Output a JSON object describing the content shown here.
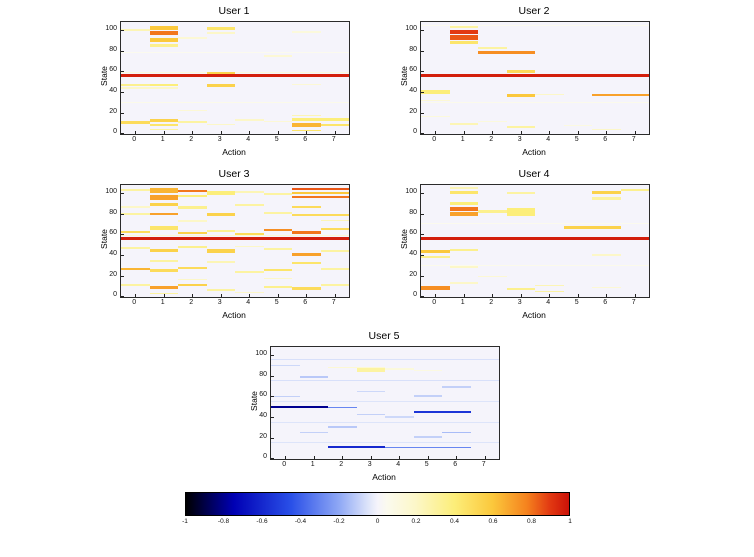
{
  "page": {
    "background": "#ffffff"
  },
  "axes": {
    "xlabel": "Action",
    "ylabel": "State",
    "xticks": [
      0,
      1,
      2,
      3,
      4,
      5,
      6,
      7
    ],
    "yticks": [
      0,
      20,
      40,
      60,
      80,
      100
    ]
  },
  "chart_data": {
    "type": "heatmap",
    "layout": "five heatmap subplots (2x2 grid plus one centered below) sharing one horizontal colorbar",
    "x_axis": {
      "label": "Action",
      "range": [
        -0.5,
        7.5
      ],
      "ticks": [
        0,
        1,
        2,
        3,
        4,
        5,
        6,
        7
      ]
    },
    "y_axis": {
      "label": "State",
      "range": [
        -0.5,
        107.5
      ],
      "ticks": [
        0,
        20,
        40,
        60,
        80,
        100
      ]
    },
    "value_range": [
      -1,
      1
    ],
    "background_value": 0,
    "cells_format": "[action_col, state_bottom, width_in_actions, height_in_states, value]",
    "colormap_stops": [
      {
        "v": -1,
        "color": "#000000"
      },
      {
        "v": -0.75,
        "color": "#0000b4"
      },
      {
        "v": -0.45,
        "color": "#2a50e8"
      },
      {
        "v": -0.2,
        "color": "#8fa8f5"
      },
      {
        "v": -0.05,
        "color": "#dde4fa"
      },
      {
        "v": 0,
        "color": "#f5f4fb"
      },
      {
        "v": 0.05,
        "color": "#fbfaee"
      },
      {
        "v": 0.2,
        "color": "#fcf7c8"
      },
      {
        "v": 0.4,
        "color": "#fcee7a"
      },
      {
        "v": 0.6,
        "color": "#fbc83c"
      },
      {
        "v": 0.78,
        "color": "#f5821e"
      },
      {
        "v": 0.9,
        "color": "#e23912"
      },
      {
        "v": 1,
        "color": "#cc1208"
      }
    ],
    "colorbar": {
      "orientation": "horizontal",
      "range": [
        -1,
        1
      ],
      "ticks": [
        -1,
        -0.8,
        -0.6,
        -0.4,
        -0.2,
        0,
        0.2,
        0.4,
        0.6,
        0.8,
        1
      ]
    },
    "subplots": [
      {
        "title": "User 1",
        "cells": [
          [
            0,
            78,
            8,
            1,
            0.05
          ],
          [
            0,
            30,
            8,
            1,
            0.07
          ],
          [
            0,
            59,
            8,
            1,
            0.12
          ],
          [
            0,
            55,
            8,
            3,
            0.97
          ],
          [
            1,
            100,
            1,
            4,
            0.6
          ],
          [
            1,
            95,
            1,
            4,
            0.8
          ],
          [
            1,
            89,
            1,
            4,
            0.6
          ],
          [
            1,
            84,
            1,
            3,
            0.35
          ],
          [
            0,
            99,
            1,
            2,
            0.25
          ],
          [
            3,
            100,
            1,
            3,
            0.45
          ],
          [
            3,
            96,
            1,
            2,
            0.2
          ],
          [
            2,
            92,
            1,
            2,
            0.15
          ],
          [
            6,
            97,
            1,
            2,
            0.12
          ],
          [
            3,
            58,
            1,
            2,
            0.55
          ],
          [
            5,
            74,
            1,
            2,
            0.15
          ],
          [
            0,
            46,
            1,
            2,
            0.35
          ],
          [
            1,
            46,
            1,
            2,
            0.4
          ],
          [
            0,
            43,
            2,
            2,
            0.2
          ],
          [
            3,
            45,
            1,
            3,
            0.55
          ],
          [
            6,
            47,
            1,
            1,
            0.15
          ],
          [
            2,
            22,
            1,
            1,
            0.15
          ],
          [
            6,
            17,
            1,
            1,
            0.25
          ],
          [
            0,
            10,
            1,
            3,
            0.5
          ],
          [
            1,
            12,
            1,
            2,
            0.55
          ],
          [
            1,
            8,
            1,
            2,
            0.45
          ],
          [
            2,
            11,
            1,
            2,
            0.3
          ],
          [
            3,
            9,
            1,
            1,
            0.2
          ],
          [
            5,
            12,
            1,
            1,
            0.15
          ],
          [
            6,
            7,
            1,
            4,
            0.65
          ],
          [
            6,
            13,
            2,
            2,
            0.4
          ],
          [
            7,
            8,
            1,
            2,
            0.45
          ],
          [
            1,
            4,
            1,
            1,
            0.3
          ],
          [
            6,
            3,
            1,
            1,
            0.45
          ],
          [
            4,
            13,
            1,
            1,
            0.2
          ]
        ]
      },
      {
        "title": "User 2",
        "cells": [
          [
            0,
            104,
            8,
            1,
            0.05
          ],
          [
            0,
            30,
            8,
            1,
            0.06
          ],
          [
            0,
            55,
            8,
            3,
            0.97
          ],
          [
            1,
            102,
            1,
            2,
            0.3
          ],
          [
            1,
            96,
            1,
            4,
            0.9
          ],
          [
            1,
            91,
            1,
            4,
            0.85
          ],
          [
            1,
            87,
            1,
            3,
            0.45
          ],
          [
            2,
            82,
            1,
            2,
            0.3
          ],
          [
            2,
            77,
            2,
            3,
            0.75
          ],
          [
            3,
            59,
            1,
            3,
            0.5
          ],
          [
            0,
            39,
            1,
            3,
            0.4
          ],
          [
            3,
            36,
            1,
            3,
            0.6
          ],
          [
            6,
            37,
            2,
            2,
            0.7
          ],
          [
            4,
            38,
            1,
            1,
            0.2
          ],
          [
            0,
            32,
            1,
            1,
            0.15
          ],
          [
            1,
            9,
            1,
            2,
            0.25
          ],
          [
            3,
            6,
            1,
            2,
            0.3
          ],
          [
            6,
            4,
            1,
            1,
            0.2
          ],
          [
            0,
            16,
            1,
            1,
            0.12
          ],
          [
            2,
            12,
            1,
            1,
            0.12
          ],
          [
            5,
            8,
            1,
            1,
            0.1
          ]
        ]
      },
      {
        "title": "User 3",
        "cells": [
          [
            0,
            59,
            8,
            1,
            0.15
          ],
          [
            0,
            55,
            8,
            3,
            0.97
          ],
          [
            1,
            100,
            1,
            5,
            0.65
          ],
          [
            1,
            94,
            1,
            4,
            0.7
          ],
          [
            2,
            101,
            1,
            2,
            0.8
          ],
          [
            2,
            96,
            1,
            2,
            0.4
          ],
          [
            3,
            98,
            1,
            4,
            0.4
          ],
          [
            4,
            100,
            1,
            2,
            0.25
          ],
          [
            6,
            103,
            2,
            2,
            0.85
          ],
          [
            6,
            99,
            2,
            2,
            0.6
          ],
          [
            6,
            95,
            2,
            2,
            0.8
          ],
          [
            0,
            102,
            1,
            2,
            0.3
          ],
          [
            5,
            98,
            1,
            2,
            0.3
          ],
          [
            1,
            88,
            1,
            3,
            0.55
          ],
          [
            2,
            85,
            1,
            3,
            0.35
          ],
          [
            4,
            88,
            1,
            2,
            0.3
          ],
          [
            6,
            86,
            1,
            2,
            0.5
          ],
          [
            0,
            86,
            1,
            2,
            0.2
          ],
          [
            0,
            79,
            1,
            2,
            0.3
          ],
          [
            1,
            79,
            1,
            2,
            0.7
          ],
          [
            3,
            78,
            1,
            3,
            0.55
          ],
          [
            5,
            80,
            1,
            2,
            0.3
          ],
          [
            6,
            78,
            2,
            2,
            0.5
          ],
          [
            2,
            72,
            1,
            2,
            0.2
          ],
          [
            7,
            73,
            1,
            1,
            0.25
          ],
          [
            0,
            62,
            1,
            2,
            0.5
          ],
          [
            1,
            65,
            1,
            3,
            0.45
          ],
          [
            2,
            61,
            1,
            2,
            0.55
          ],
          [
            3,
            63,
            1,
            2,
            0.35
          ],
          [
            4,
            60,
            1,
            2,
            0.5
          ],
          [
            5,
            64,
            1,
            2,
            0.75
          ],
          [
            6,
            61,
            1,
            3,
            0.8
          ],
          [
            7,
            65,
            1,
            2,
            0.5
          ],
          [
            0,
            46,
            1,
            2,
            0.3
          ],
          [
            1,
            43,
            1,
            3,
            0.55
          ],
          [
            2,
            47,
            1,
            2,
            0.35
          ],
          [
            3,
            42,
            1,
            4,
            0.55
          ],
          [
            5,
            45,
            1,
            2,
            0.3
          ],
          [
            6,
            40,
            1,
            2,
            0.7
          ],
          [
            7,
            43,
            1,
            2,
            0.3
          ],
          [
            4,
            48,
            1,
            1,
            0.2
          ],
          [
            1,
            34,
            1,
            2,
            0.3
          ],
          [
            3,
            33,
            1,
            2,
            0.25
          ],
          [
            6,
            32,
            1,
            2,
            0.45
          ],
          [
            0,
            26,
            1,
            2,
            0.65
          ],
          [
            1,
            24,
            1,
            3,
            0.5
          ],
          [
            2,
            27,
            1,
            2,
            0.5
          ],
          [
            4,
            23,
            1,
            2,
            0.3
          ],
          [
            5,
            25,
            1,
            2,
            0.45
          ],
          [
            7,
            26,
            1,
            2,
            0.3
          ],
          [
            2,
            16,
            1,
            1,
            0.2
          ],
          [
            5,
            17,
            1,
            1,
            0.2
          ],
          [
            0,
            11,
            1,
            2,
            0.3
          ],
          [
            1,
            8,
            1,
            3,
            0.7
          ],
          [
            2,
            11,
            1,
            2,
            0.55
          ],
          [
            3,
            6,
            1,
            2,
            0.3
          ],
          [
            5,
            9,
            1,
            2,
            0.35
          ],
          [
            6,
            7,
            1,
            3,
            0.5
          ],
          [
            7,
            11,
            1,
            2,
            0.3
          ],
          [
            1,
            3,
            1,
            1,
            0.3
          ],
          [
            4,
            4,
            1,
            1,
            0.2
          ]
        ]
      },
      {
        "title": "User 4",
        "cells": [
          [
            0,
            70,
            8,
            1,
            0.05
          ],
          [
            0,
            30,
            8,
            1,
            0.06
          ],
          [
            0,
            55,
            8,
            3,
            0.97
          ],
          [
            1,
            104,
            1,
            2,
            0.25
          ],
          [
            1,
            99,
            1,
            3,
            0.45
          ],
          [
            1,
            89,
            1,
            3,
            0.4
          ],
          [
            1,
            83,
            1,
            4,
            0.8
          ],
          [
            1,
            78,
            1,
            4,
            0.7
          ],
          [
            2,
            81,
            1,
            3,
            0.35
          ],
          [
            3,
            78,
            1,
            8,
            0.4
          ],
          [
            3,
            99,
            1,
            2,
            0.3
          ],
          [
            5,
            66,
            2,
            2,
            0.55
          ],
          [
            6,
            99,
            1,
            3,
            0.55
          ],
          [
            6,
            94,
            1,
            2,
            0.3
          ],
          [
            7,
            102,
            1,
            2,
            0.35
          ],
          [
            0,
            42,
            1,
            3,
            0.6
          ],
          [
            0,
            38,
            1,
            2,
            0.35
          ],
          [
            1,
            44,
            1,
            2,
            0.35
          ],
          [
            6,
            40,
            1,
            1,
            0.2
          ],
          [
            1,
            28,
            1,
            2,
            0.2
          ],
          [
            2,
            19,
            1,
            1,
            0.15
          ],
          [
            0,
            7,
            1,
            4,
            0.75
          ],
          [
            3,
            7,
            1,
            2,
            0.35
          ],
          [
            4,
            5,
            1,
            1,
            0.3
          ],
          [
            4,
            11,
            1,
            1,
            0.25
          ],
          [
            6,
            9,
            1,
            1,
            0.15
          ],
          [
            1,
            13,
            1,
            1,
            0.2
          ]
        ]
      },
      {
        "title": "User 5",
        "cells": [
          [
            0,
            95,
            8,
            1,
            -0.06
          ],
          [
            0,
            75,
            8,
            1,
            -0.06
          ],
          [
            0,
            55,
            8,
            1,
            -0.05
          ],
          [
            0,
            35,
            8,
            1,
            -0.05
          ],
          [
            0,
            15,
            8,
            1,
            -0.05
          ],
          [
            0,
            49,
            2,
            2,
            -0.8
          ],
          [
            2,
            49,
            1,
            1,
            -0.3
          ],
          [
            5,
            44,
            2,
            2,
            -0.55
          ],
          [
            2,
            11,
            2,
            2,
            -0.6
          ],
          [
            4,
            11,
            3,
            1,
            -0.3
          ],
          [
            3,
            84,
            1,
            4,
            0.3
          ],
          [
            2,
            88,
            2,
            1,
            0.15
          ],
          [
            4,
            86,
            1,
            2,
            0.12
          ],
          [
            5,
            85,
            1,
            1,
            0.1
          ],
          [
            1,
            78,
            1,
            2,
            -0.12
          ],
          [
            5,
            60,
            1,
            2,
            -0.1
          ],
          [
            2,
            30,
            1,
            2,
            -0.12
          ],
          [
            6,
            68,
            1,
            2,
            -0.1
          ],
          [
            0,
            90,
            1,
            1,
            -0.08
          ],
          [
            3,
            65,
            1,
            1,
            -0.08
          ],
          [
            1,
            25,
            1,
            1,
            -0.1
          ],
          [
            6,
            25,
            1,
            1,
            -0.15
          ],
          [
            0,
            60,
            1,
            1,
            -0.1
          ],
          [
            4,
            40,
            1,
            1,
            -0.08
          ],
          [
            5,
            20,
            1,
            2,
            -0.1
          ],
          [
            3,
            42,
            1,
            1,
            -0.1
          ]
        ]
      }
    ]
  }
}
